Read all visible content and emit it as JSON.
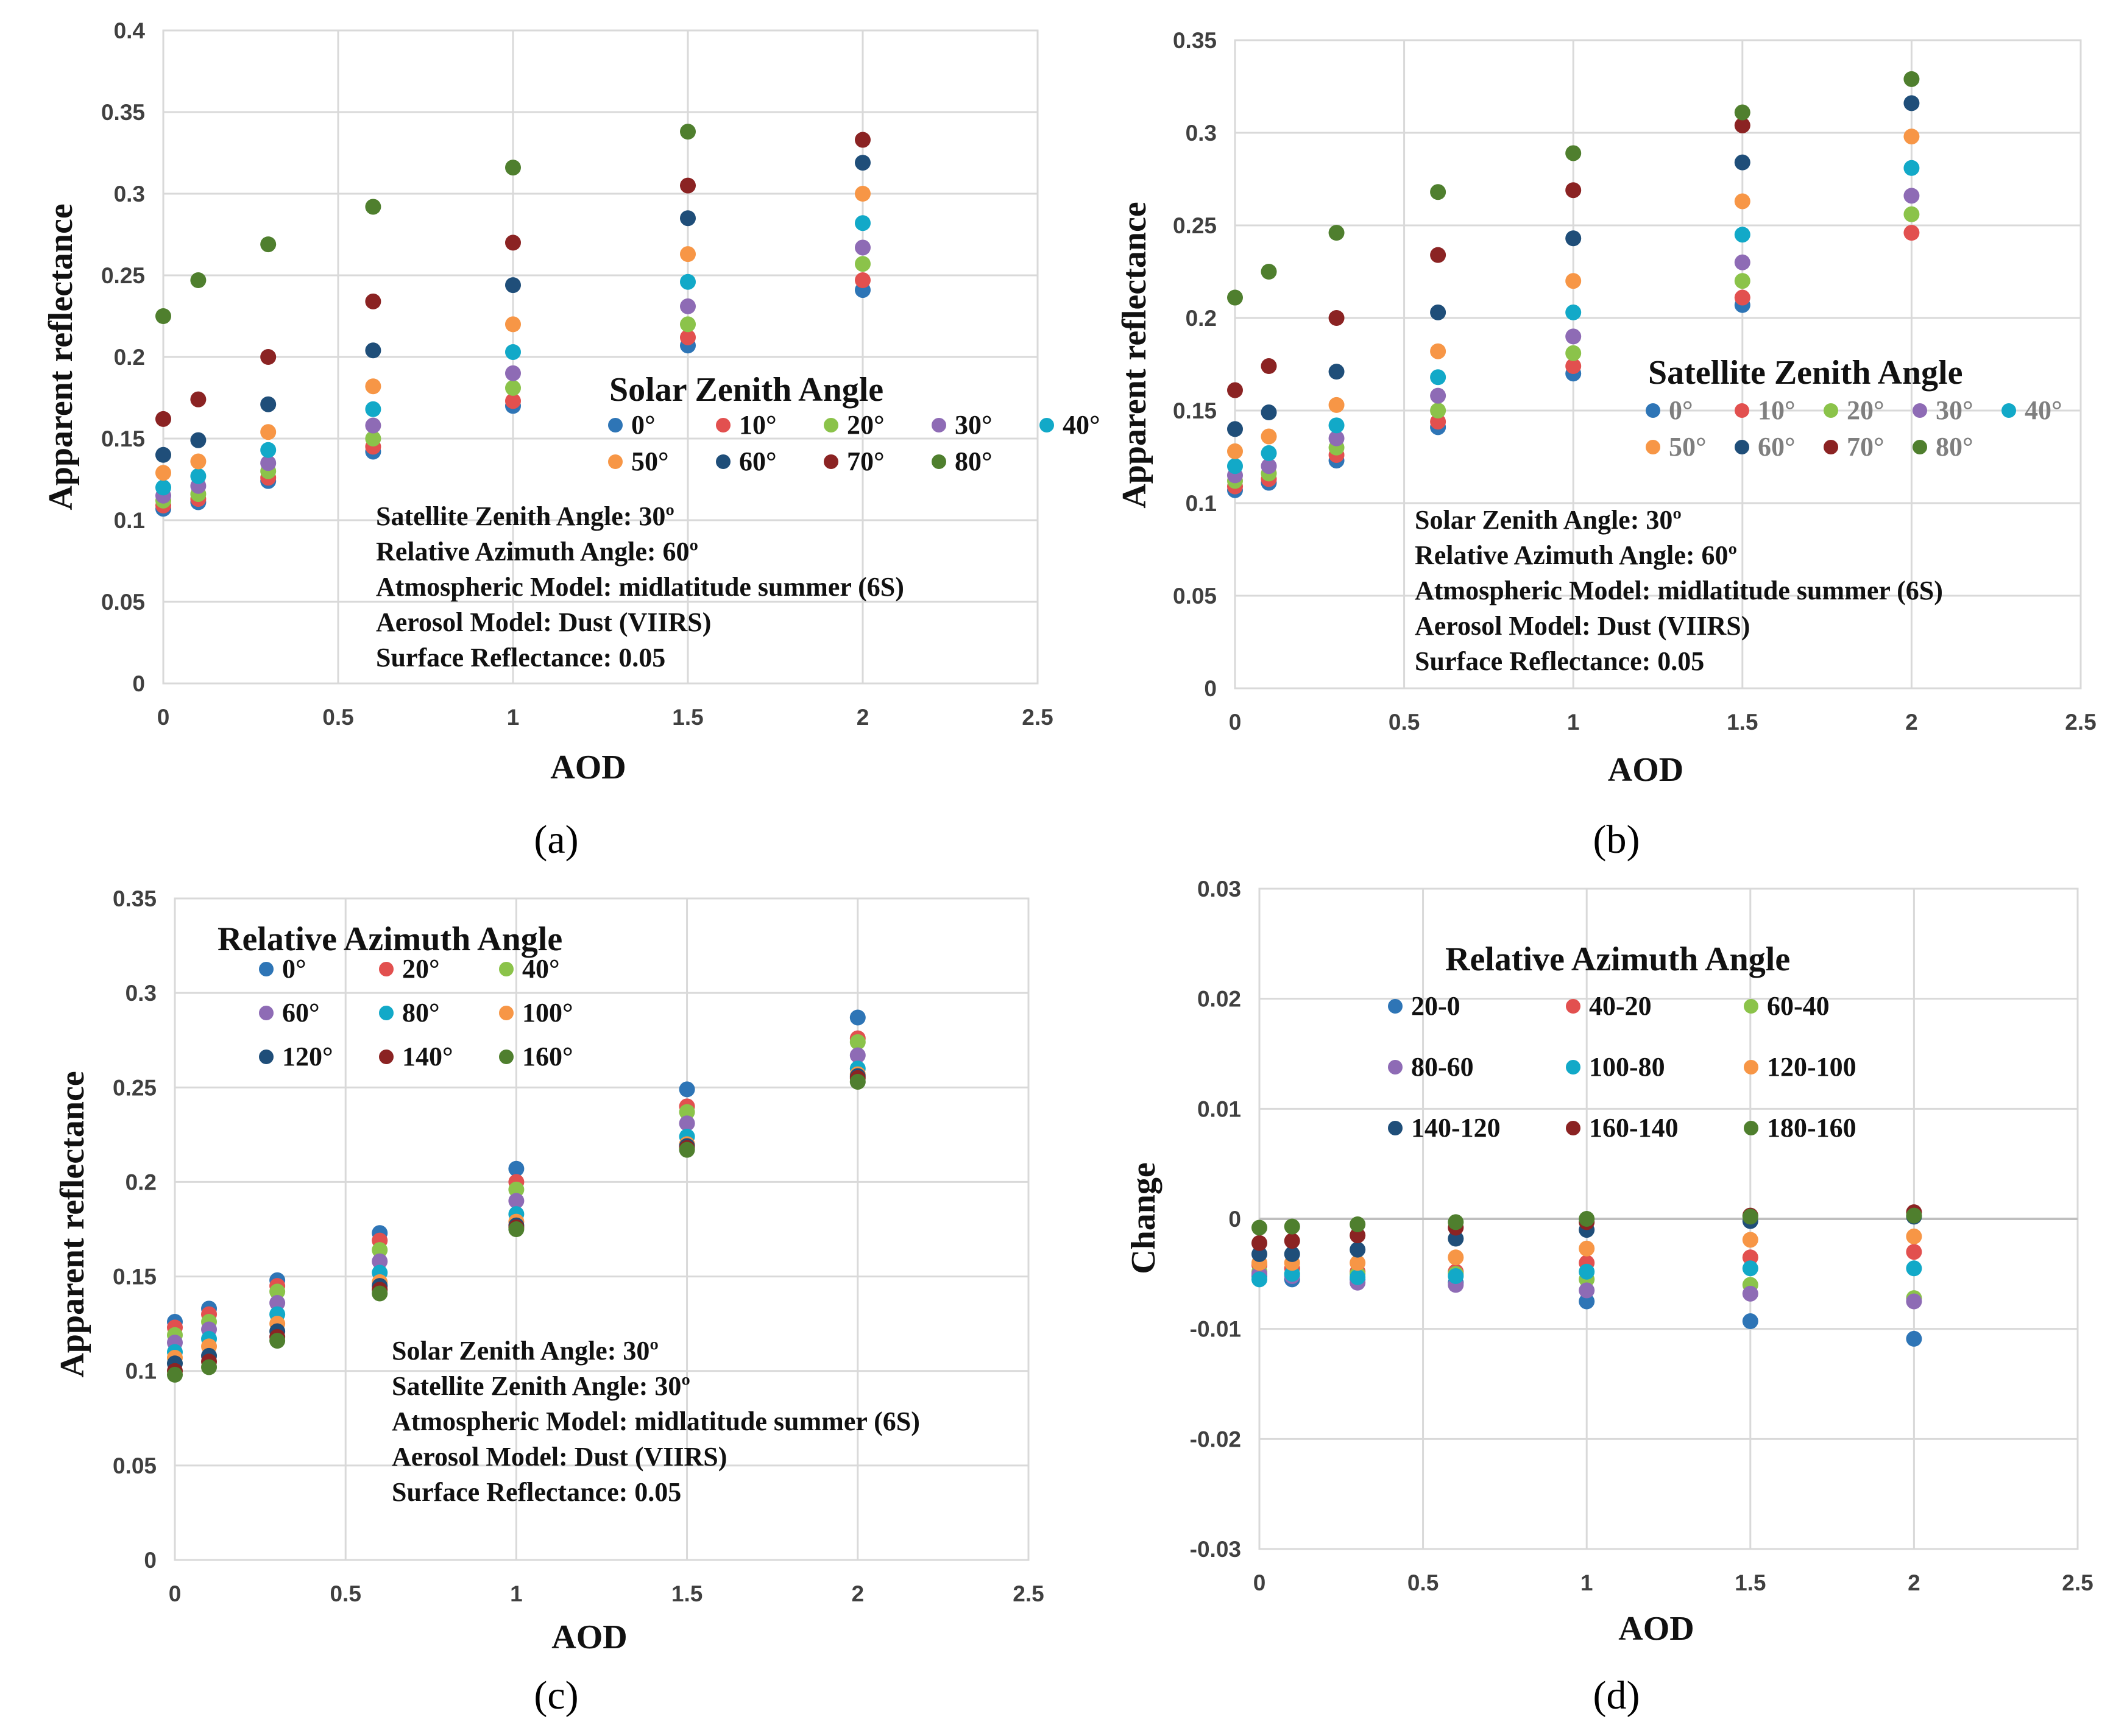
{
  "colors": [
    "#2e75b6",
    "#e2504f",
    "#8bc34a",
    "#8e6bb5",
    "#12a9c8",
    "#f79646",
    "#1f4e79",
    "#8b2323",
    "#4f7f2e"
  ],
  "chart_data": [
    {
      "type": "scatter",
      "caption": "(a)",
      "xlabel": "AOD",
      "ylabel": "Apparent  reflectance",
      "xlim": [
        0,
        2.5
      ],
      "ylim": [
        0,
        0.4
      ],
      "xticks": [
        0,
        0.5,
        1,
        1.5,
        2,
        2.5
      ],
      "yticks": [
        0,
        0.05,
        0.1,
        0.15,
        0.2,
        0.25,
        0.3,
        0.35,
        0.4
      ],
      "x": [
        0,
        0.1,
        0.3,
        0.6,
        1,
        1.5,
        2
      ],
      "legend_title": "Solar  Zenith  Angle",
      "legend_cols": 5,
      "legend_text_color": "#111111",
      "series": [
        {
          "name": "0°",
          "values": [
            0.107,
            0.111,
            0.124,
            0.142,
            0.17,
            0.207,
            0.241
          ]
        },
        {
          "name": "10°",
          "values": [
            0.109,
            0.113,
            0.126,
            0.145,
            0.173,
            0.212,
            0.247
          ]
        },
        {
          "name": "20°",
          "values": [
            0.112,
            0.116,
            0.13,
            0.15,
            0.181,
            0.22,
            0.257
          ]
        },
        {
          "name": "30°",
          "values": [
            0.115,
            0.121,
            0.135,
            0.158,
            0.19,
            0.231,
            0.267
          ]
        },
        {
          "name": "40°",
          "values": [
            0.12,
            0.127,
            0.143,
            0.168,
            0.203,
            0.246,
            0.282
          ]
        },
        {
          "name": "50°",
          "values": [
            0.129,
            0.136,
            0.154,
            0.182,
            0.22,
            0.263,
            0.3
          ]
        },
        {
          "name": "60°",
          "values": [
            0.14,
            0.149,
            0.171,
            0.204,
            0.244,
            0.285,
            0.319
          ]
        },
        {
          "name": "70°",
          "values": [
            0.162,
            0.174,
            0.2,
            0.234,
            0.27,
            0.305,
            0.333
          ]
        },
        {
          "name": "80°",
          "values": [
            0.225,
            0.247,
            0.269,
            0.292,
            0.316,
            0.338,
            null
          ]
        }
      ],
      "annotations": [
        "Satellite Zenith Angle: 30º",
        "Relative Azimuth Angle: 60º",
        "Atmospheric Model: midlatitude summer (6S)",
        "Aerosol Model: Dust (VIIRS)",
        "Surface Reflectance: 0.05"
      ]
    },
    {
      "type": "scatter",
      "caption": "(b)",
      "xlabel": "AOD",
      "ylabel": "Apparent  reflectance",
      "xlim": [
        0,
        2.5
      ],
      "ylim": [
        0,
        0.35
      ],
      "xticks": [
        0,
        0.5,
        1,
        1.5,
        2,
        2.5
      ],
      "yticks": [
        0,
        0.05,
        0.1,
        0.15,
        0.2,
        0.25,
        0.3,
        0.35
      ],
      "x": [
        0,
        0.1,
        0.3,
        0.6,
        1,
        1.5,
        2
      ],
      "legend_title": "Satellite  Zenith  Angle",
      "legend_cols": 5,
      "legend_text_color": "#7f7f7f",
      "series": [
        {
          "name": "0°",
          "values": [
            0.107,
            0.111,
            0.123,
            0.141,
            0.17,
            0.207,
            null
          ]
        },
        {
          "name": "10°",
          "values": [
            0.109,
            0.113,
            0.126,
            0.144,
            0.174,
            0.211,
            0.246
          ]
        },
        {
          "name": "20°",
          "values": [
            0.112,
            0.116,
            0.13,
            0.15,
            0.181,
            0.22,
            0.256
          ]
        },
        {
          "name": "30°",
          "values": [
            0.115,
            0.12,
            0.135,
            0.158,
            0.19,
            0.23,
            0.266
          ]
        },
        {
          "name": "40°",
          "values": [
            0.12,
            0.127,
            0.142,
            0.168,
            0.203,
            0.245,
            0.281
          ]
        },
        {
          "name": "50°",
          "values": [
            0.128,
            0.136,
            0.153,
            0.182,
            0.22,
            0.263,
            0.298
          ]
        },
        {
          "name": "60°",
          "values": [
            0.14,
            0.149,
            0.171,
            0.203,
            0.243,
            0.284,
            0.316
          ]
        },
        {
          "name": "70°",
          "values": [
            0.161,
            0.174,
            0.2,
            0.234,
            0.269,
            0.304,
            null
          ]
        },
        {
          "name": "80°",
          "values": [
            0.211,
            0.225,
            0.246,
            0.268,
            0.289,
            0.311,
            0.329
          ]
        }
      ],
      "annotations": [
        "Solar Zenith Angle: 30º",
        "Relative Azimuth  Angle: 60º",
        "Atmospheric Model: midlatitude summer (6S)",
        "Aerosol Model: Dust (VIIRS)",
        "Surface Reflectance: 0.05"
      ]
    },
    {
      "type": "scatter",
      "caption": "(c)",
      "xlabel": "AOD",
      "ylabel": "Apparent  reflectance",
      "xlim": [
        0,
        2.5
      ],
      "ylim": [
        0,
        0.35
      ],
      "xticks": [
        0,
        0.5,
        1,
        1.5,
        2,
        2.5
      ],
      "yticks": [
        0,
        0.05,
        0.1,
        0.15,
        0.2,
        0.25,
        0.3,
        0.35
      ],
      "x": [
        0,
        0.1,
        0.3,
        0.6,
        1,
        1.5,
        2
      ],
      "legend_title": "Relative Azimuth Angle",
      "legend_cols": 3,
      "legend_text_color": "#111111",
      "series": [
        {
          "name": "0°",
          "values": [
            0.126,
            0.133,
            0.148,
            0.173,
            0.207,
            0.249,
            0.287
          ]
        },
        {
          "name": "20°",
          "values": [
            0.123,
            0.13,
            0.145,
            0.169,
            0.2,
            0.24,
            0.276
          ]
        },
        {
          "name": "40°",
          "values": [
            0.119,
            0.126,
            0.142,
            0.164,
            0.196,
            0.237,
            0.274
          ]
        },
        {
          "name": "60°",
          "values": [
            0.115,
            0.122,
            0.136,
            0.158,
            0.19,
            0.231,
            0.267
          ]
        },
        {
          "name": "80°",
          "values": [
            0.11,
            0.117,
            0.13,
            0.152,
            0.183,
            0.224,
            0.26
          ]
        },
        {
          "name": "100°",
          "values": [
            0.107,
            0.113,
            0.125,
            0.147,
            0.179,
            0.22,
            0.257
          ]
        },
        {
          "name": "120°",
          "values": [
            0.104,
            0.108,
            0.121,
            0.145,
            0.177,
            0.219,
            0.256
          ]
        },
        {
          "name": "140°",
          "values": [
            0.1,
            0.105,
            0.118,
            0.143,
            0.176,
            0.218,
            0.255
          ]
        },
        {
          "name": "160°",
          "values": [
            0.098,
            0.102,
            0.116,
            0.141,
            0.175,
            0.217,
            0.253
          ]
        }
      ],
      "annotations": [
        "Solar Zenith Angle: 30º",
        "Satellite Zenith Angle: 30º",
        "Atmospheric Model: midlatitude summer (6S)",
        "Aerosol Model: Dust (VIIRS)",
        "Surface Reflectance: 0.05"
      ]
    },
    {
      "type": "scatter",
      "caption": "(d)",
      "xlabel": "AOD",
      "ylabel": "Change",
      "xlim": [
        0,
        2.5
      ],
      "ylim": [
        -0.03,
        0.03
      ],
      "xticks": [
        0,
        0.5,
        1,
        1.5,
        2,
        2.5
      ],
      "yticks": [
        -0.03,
        -0.02,
        -0.01,
        0,
        0.01,
        0.02,
        0.03
      ],
      "x": [
        0,
        0.1,
        0.3,
        0.6,
        1,
        1.5,
        2
      ],
      "legend_title": "Relative Azimuth Angle",
      "legend_cols": 3,
      "legend_text_color": "#111111",
      "series": [
        {
          "name": "20-0",
          "values": [
            -0.0052,
            -0.0055,
            -0.0055,
            -0.0058,
            -0.0075,
            -0.0093,
            -0.0109
          ]
        },
        {
          "name": "40-20",
          "values": [
            -0.0042,
            -0.0045,
            -0.0048,
            -0.0048,
            -0.004,
            -0.0035,
            -0.003
          ]
        },
        {
          "name": "60-40",
          "values": [
            -0.0048,
            -0.005,
            -0.005,
            -0.005,
            -0.0055,
            -0.006,
            -0.0072
          ]
        },
        {
          "name": "80-60",
          "values": [
            -0.005,
            -0.0052,
            -0.0058,
            -0.006,
            -0.0065,
            -0.0068,
            -0.0075
          ]
        },
        {
          "name": "100-80",
          "values": [
            -0.0055,
            -0.005,
            -0.0053,
            -0.0052,
            -0.0048,
            -0.0045,
            -0.0045
          ]
        },
        {
          "name": "120-100",
          "values": [
            -0.004,
            -0.004,
            -0.004,
            -0.0035,
            -0.0027,
            -0.0019,
            -0.0016
          ]
        },
        {
          "name": "140-120",
          "values": [
            -0.0032,
            -0.0032,
            -0.0028,
            -0.0018,
            -0.001,
            -0.0002,
            0.0002
          ]
        },
        {
          "name": "160-140",
          "values": [
            -0.0022,
            -0.002,
            -0.0015,
            -0.0008,
            -0.0003,
            0.0003,
            0.0006
          ]
        },
        {
          "name": "180-160",
          "values": [
            -0.0008,
            -0.0007,
            -0.0005,
            -0.0003,
            0.0,
            0.0002,
            0.0003
          ]
        }
      ],
      "annotations": []
    }
  ]
}
